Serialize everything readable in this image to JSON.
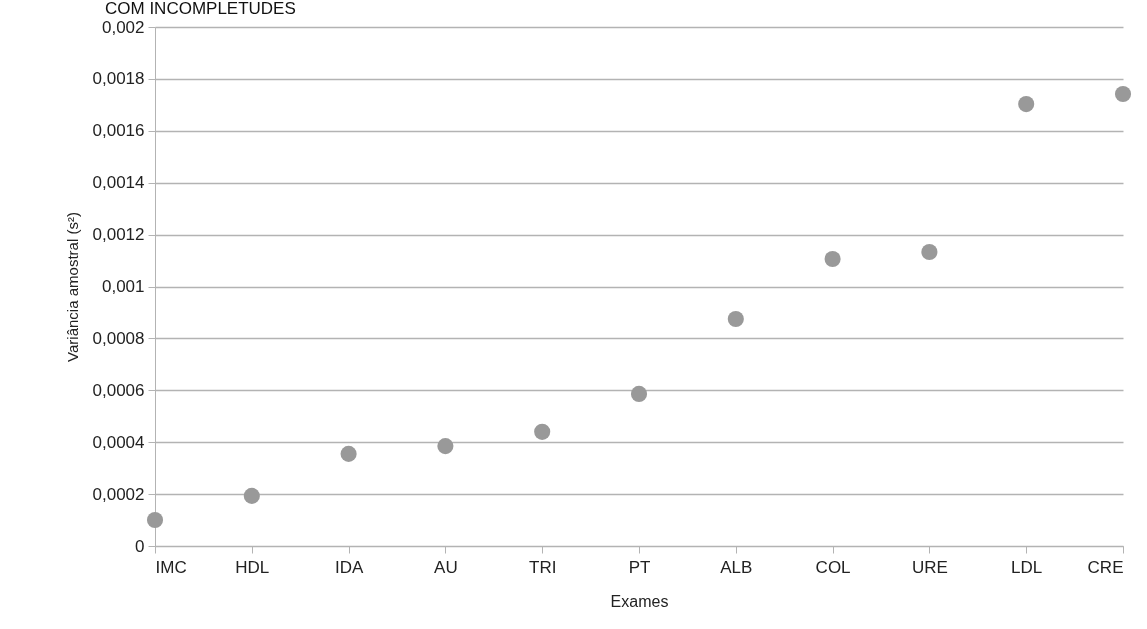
{
  "chart_data": {
    "type": "scatter",
    "title": "COM INCOMPLETUDES",
    "xlabel": "Exames",
    "ylabel": "Variância amostral (s²)",
    "categories": [
      "IMC",
      "HDL",
      "IDA",
      "AU",
      "TRI",
      "PT",
      "ALB",
      "COL",
      "URE",
      "LDL",
      "CRE"
    ],
    "series": [
      {
        "color": "#999999",
        "values": [
          0.0001,
          0.000193,
          0.000355,
          0.000385,
          0.00044,
          0.000586,
          0.000875,
          0.001106,
          0.001133,
          0.001703,
          0.001742
        ]
      }
    ],
    "ylim": [
      0,
      0.002
    ],
    "yticks": [
      {
        "value": 0,
        "label": "0"
      },
      {
        "value": 0.0002,
        "label": "0,0002"
      },
      {
        "value": 0.0004,
        "label": "0,0004"
      },
      {
        "value": 0.0006,
        "label": "0,0006"
      },
      {
        "value": 0.0008,
        "label": "0,0008"
      },
      {
        "value": 0.001,
        "label": "0,001"
      },
      {
        "value": 0.0012,
        "label": "0,0012"
      },
      {
        "value": 0.0014,
        "label": "0,0014"
      },
      {
        "value": 0.0016,
        "label": "0,0016"
      },
      {
        "value": 0.0018,
        "label": "0,0018"
      },
      {
        "value": 0.002,
        "label": "0,002"
      }
    ],
    "grid": "y",
    "marker": "circle"
  }
}
